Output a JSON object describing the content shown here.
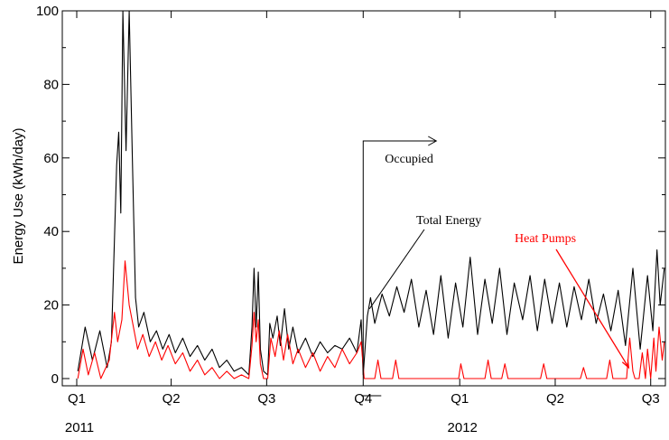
{
  "chart_data": {
    "type": "line",
    "title": "",
    "ylabel": "Energy Use (kWh/day)",
    "xlabel": "",
    "ylim": [
      0,
      100
    ],
    "yticks": [
      0,
      20,
      40,
      60,
      80,
      100
    ],
    "xlim": [
      "2011-01-01",
      "2012-07-15"
    ],
    "x_ticks": [
      {
        "label": "Q1",
        "date": "2011-01-01"
      },
      {
        "label": "Q2",
        "date": "2011-04-01"
      },
      {
        "label": "Q3",
        "date": "2011-07-01"
      },
      {
        "label": "Q4",
        "date": "2011-10-01"
      },
      {
        "label": "Q1",
        "date": "2012-01-01"
      },
      {
        "label": "Q2",
        "date": "2012-04-01"
      },
      {
        "label": "Q3",
        "date": "2012-07-01"
      }
    ],
    "year_labels": [
      {
        "label": "2011",
        "date": "2011-01-01"
      },
      {
        "label": "2012",
        "date": "2012-01-01"
      }
    ],
    "grid": false,
    "legend": "none",
    "series": [
      {
        "name": "Total Energy",
        "color": "#000000",
        "points": [
          [
            "2011-01-02",
            2
          ],
          [
            "2011-01-09",
            14
          ],
          [
            "2011-01-16",
            5
          ],
          [
            "2011-01-23",
            13
          ],
          [
            "2011-01-30",
            3
          ],
          [
            "2011-02-03",
            10
          ],
          [
            "2011-02-08",
            58
          ],
          [
            "2011-02-10",
            67
          ],
          [
            "2011-02-12",
            45
          ],
          [
            "2011-02-14",
            100
          ],
          [
            "2011-02-17",
            62
          ],
          [
            "2011-02-20",
            100
          ],
          [
            "2011-02-23",
            60
          ],
          [
            "2011-02-26",
            22
          ],
          [
            "2011-03-01",
            14
          ],
          [
            "2011-03-06",
            18
          ],
          [
            "2011-03-12",
            10
          ],
          [
            "2011-03-18",
            13
          ],
          [
            "2011-03-24",
            8
          ],
          [
            "2011-03-30",
            12
          ],
          [
            "2011-04-05",
            7
          ],
          [
            "2011-04-12",
            11
          ],
          [
            "2011-04-19",
            6
          ],
          [
            "2011-04-26",
            9
          ],
          [
            "2011-05-03",
            5
          ],
          [
            "2011-05-10",
            8
          ],
          [
            "2011-05-17",
            3
          ],
          [
            "2011-05-24",
            5
          ],
          [
            "2011-05-31",
            2
          ],
          [
            "2011-06-07",
            3
          ],
          [
            "2011-06-14",
            1
          ],
          [
            "2011-06-17",
            14
          ],
          [
            "2011-06-19",
            30
          ],
          [
            "2011-06-21",
            14
          ],
          [
            "2011-06-23",
            29
          ],
          [
            "2011-06-25",
            8
          ],
          [
            "2011-06-28",
            2
          ],
          [
            "2011-07-02",
            1
          ],
          [
            "2011-07-04",
            15
          ],
          [
            "2011-07-07",
            11
          ],
          [
            "2011-07-11",
            17
          ],
          [
            "2011-07-14",
            9
          ],
          [
            "2011-07-18",
            19
          ],
          [
            "2011-07-22",
            8
          ],
          [
            "2011-07-26",
            14
          ],
          [
            "2011-07-31",
            7
          ],
          [
            "2011-08-07",
            11
          ],
          [
            "2011-08-14",
            6
          ],
          [
            "2011-08-21",
            10
          ],
          [
            "2011-08-28",
            7
          ],
          [
            "2011-09-04",
            9
          ],
          [
            "2011-09-11",
            8
          ],
          [
            "2011-09-18",
            11
          ],
          [
            "2011-09-25",
            7
          ],
          [
            "2011-09-29",
            16
          ],
          [
            "2011-10-01",
            1
          ],
          [
            "2011-10-05",
            17
          ],
          [
            "2011-10-08",
            22
          ],
          [
            "2011-10-12",
            15
          ],
          [
            "2011-10-19",
            23
          ],
          [
            "2011-10-26",
            17
          ],
          [
            "2011-11-02",
            25
          ],
          [
            "2011-11-09",
            18
          ],
          [
            "2011-11-16",
            27
          ],
          [
            "2011-11-23",
            14
          ],
          [
            "2011-11-30",
            24
          ],
          [
            "2011-12-07",
            12
          ],
          [
            "2011-12-14",
            28
          ],
          [
            "2011-12-21",
            11
          ],
          [
            "2011-12-28",
            26
          ],
          [
            "2012-01-04",
            14
          ],
          [
            "2012-01-11",
            33
          ],
          [
            "2012-01-18",
            12
          ],
          [
            "2012-01-25",
            27
          ],
          [
            "2012-02-01",
            15
          ],
          [
            "2012-02-08",
            30
          ],
          [
            "2012-02-15",
            12
          ],
          [
            "2012-02-22",
            26
          ],
          [
            "2012-03-01",
            16
          ],
          [
            "2012-03-08",
            28
          ],
          [
            "2012-03-15",
            13
          ],
          [
            "2012-03-22",
            27
          ],
          [
            "2012-03-29",
            15
          ],
          [
            "2012-04-05",
            26
          ],
          [
            "2012-04-12",
            14
          ],
          [
            "2012-04-19",
            25
          ],
          [
            "2012-04-26",
            16
          ],
          [
            "2012-05-03",
            27
          ],
          [
            "2012-05-10",
            15
          ],
          [
            "2012-05-17",
            23
          ],
          [
            "2012-05-24",
            13
          ],
          [
            "2012-05-31",
            24
          ],
          [
            "2012-06-07",
            9
          ],
          [
            "2012-06-14",
            30
          ],
          [
            "2012-06-21",
            8
          ],
          [
            "2012-06-28",
            28
          ],
          [
            "2012-07-03",
            13
          ],
          [
            "2012-07-07",
            35
          ],
          [
            "2012-07-10",
            20
          ],
          [
            "2012-07-14",
            30
          ]
        ]
      },
      {
        "name": "Heat Pumps",
        "color": "#ff0000",
        "points": [
          [
            "2011-01-02",
            0
          ],
          [
            "2011-01-07",
            8
          ],
          [
            "2011-01-12",
            1
          ],
          [
            "2011-01-18",
            7
          ],
          [
            "2011-01-24",
            0
          ],
          [
            "2011-02-01",
            5
          ],
          [
            "2011-02-06",
            18
          ],
          [
            "2011-02-09",
            10
          ],
          [
            "2011-02-13",
            16
          ],
          [
            "2011-02-16",
            32
          ],
          [
            "2011-02-20",
            20
          ],
          [
            "2011-02-24",
            14
          ],
          [
            "2011-02-28",
            8
          ],
          [
            "2011-03-05",
            12
          ],
          [
            "2011-03-11",
            6
          ],
          [
            "2011-03-17",
            10
          ],
          [
            "2011-03-23",
            5
          ],
          [
            "2011-03-29",
            9
          ],
          [
            "2011-04-05",
            4
          ],
          [
            "2011-04-12",
            7
          ],
          [
            "2011-04-19",
            2
          ],
          [
            "2011-04-26",
            5
          ],
          [
            "2011-05-03",
            1
          ],
          [
            "2011-05-10",
            3
          ],
          [
            "2011-05-17",
            0
          ],
          [
            "2011-05-24",
            2
          ],
          [
            "2011-05-31",
            0
          ],
          [
            "2011-06-07",
            1
          ],
          [
            "2011-06-14",
            0
          ],
          [
            "2011-06-17",
            9
          ],
          [
            "2011-06-19",
            18
          ],
          [
            "2011-06-21",
            10
          ],
          [
            "2011-06-23",
            16
          ],
          [
            "2011-06-25",
            4
          ],
          [
            "2011-06-28",
            0
          ],
          [
            "2011-07-02",
            0
          ],
          [
            "2011-07-05",
            11
          ],
          [
            "2011-07-09",
            6
          ],
          [
            "2011-07-13",
            13
          ],
          [
            "2011-07-17",
            5
          ],
          [
            "2011-07-21",
            12
          ],
          [
            "2011-07-26",
            4
          ],
          [
            "2011-07-31",
            8
          ],
          [
            "2011-08-07",
            3
          ],
          [
            "2011-08-14",
            7
          ],
          [
            "2011-08-21",
            2
          ],
          [
            "2011-08-28",
            6
          ],
          [
            "2011-09-04",
            3
          ],
          [
            "2011-09-11",
            8
          ],
          [
            "2011-09-18",
            4
          ],
          [
            "2011-09-25",
            7
          ],
          [
            "2011-09-29",
            10
          ],
          [
            "2011-10-02",
            0
          ],
          [
            "2011-10-12",
            0
          ],
          [
            "2011-10-15",
            5
          ],
          [
            "2011-10-18",
            0
          ],
          [
            "2011-10-29",
            0
          ],
          [
            "2011-11-01",
            5
          ],
          [
            "2011-11-04",
            0
          ],
          [
            "2011-12-31",
            0
          ],
          [
            "2012-01-02",
            4
          ],
          [
            "2012-01-05",
            0
          ],
          [
            "2012-01-25",
            0
          ],
          [
            "2012-01-28",
            5
          ],
          [
            "2012-01-31",
            0
          ],
          [
            "2012-02-10",
            0
          ],
          [
            "2012-02-13",
            4
          ],
          [
            "2012-02-16",
            0
          ],
          [
            "2012-03-18",
            0
          ],
          [
            "2012-03-21",
            4
          ],
          [
            "2012-03-24",
            0
          ],
          [
            "2012-04-25",
            0
          ],
          [
            "2012-04-28",
            3
          ],
          [
            "2012-05-01",
            0
          ],
          [
            "2012-05-20",
            0
          ],
          [
            "2012-05-23",
            5
          ],
          [
            "2012-05-26",
            0
          ],
          [
            "2012-06-08",
            0
          ],
          [
            "2012-06-11",
            11
          ],
          [
            "2012-06-14",
            2
          ],
          [
            "2012-06-16",
            0
          ],
          [
            "2012-06-20",
            0
          ],
          [
            "2012-06-23",
            7
          ],
          [
            "2012-06-26",
            0
          ],
          [
            "2012-06-28",
            8
          ],
          [
            "2012-07-01",
            0
          ],
          [
            "2012-07-04",
            11
          ],
          [
            "2012-07-06",
            2
          ],
          [
            "2012-07-09",
            14
          ],
          [
            "2012-07-12",
            5
          ],
          [
            "2012-07-14",
            10
          ]
        ]
      }
    ],
    "annotations": [
      {
        "name": "occupied",
        "text": "Occupied",
        "color": "#000000",
        "date": "2011-10-01"
      },
      {
        "name": "total-energy",
        "text": "Total Energy",
        "color": "#000000",
        "date": "2011-10-07",
        "value": 17
      },
      {
        "name": "heat-pumps",
        "text": "Heat Pumps",
        "color": "#ff0000",
        "date": "2012-06-10",
        "value": 3
      }
    ]
  }
}
